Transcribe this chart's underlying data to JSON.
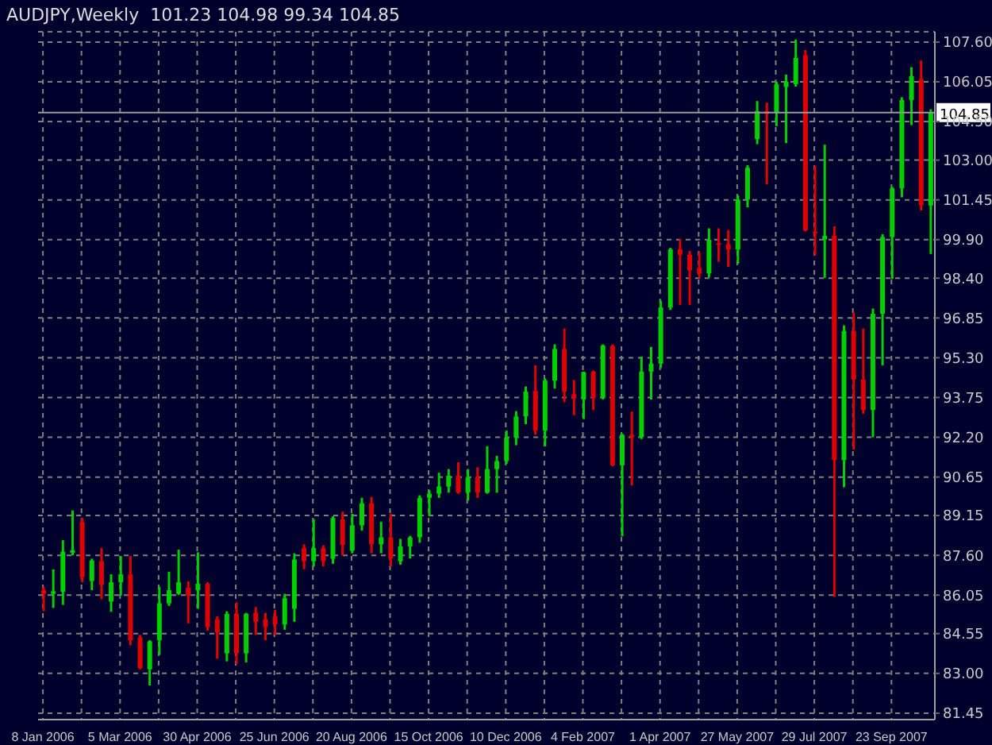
{
  "chart_data": {
    "type": "candlestick",
    "title": "AUDJPY,Weekly  101.23 104.98 99.34 104.85",
    "categories": [
      "8 Jan 2006",
      null,
      null,
      null,
      null,
      null,
      null,
      null,
      "5 Mar 2006",
      null,
      null,
      null,
      null,
      null,
      null,
      null,
      "30 Apr 2006",
      null,
      null,
      null,
      null,
      null,
      null,
      null,
      "25 Jun 2006",
      null,
      null,
      null,
      null,
      null,
      null,
      null,
      "20 Aug 2006",
      null,
      null,
      null,
      null,
      null,
      null,
      null,
      "15 Oct 2006",
      null,
      null,
      null,
      null,
      null,
      null,
      null,
      "10 Dec 2006",
      null,
      null,
      null,
      null,
      null,
      null,
      null,
      "4 Feb 2007",
      null,
      null,
      null,
      null,
      null,
      null,
      null,
      "1 Apr 2007",
      null,
      null,
      null,
      null,
      null,
      null,
      null,
      "27 May 2007",
      null,
      null,
      null,
      null,
      null,
      null,
      null,
      "29 Jul 2007",
      null,
      null,
      null,
      null,
      null,
      null,
      null,
      "23 Sep 2007",
      null,
      null,
      null,
      null
    ],
    "ohlc": [
      [
        86.24,
        86.38,
        85.42,
        86.1
      ],
      [
        86.1,
        87.05,
        85.55,
        86.2
      ],
      [
        86.18,
        88.19,
        85.67,
        87.74
      ],
      [
        87.7,
        89.35,
        87.6,
        87.8
      ],
      [
        88.9,
        89.05,
        86.55,
        86.75
      ],
      [
        86.6,
        87.47,
        86.24,
        87.4
      ],
      [
        87.37,
        87.88,
        85.89,
        86.45
      ],
      [
        85.8,
        86.86,
        85.4,
        86.55
      ],
      [
        86.55,
        87.57,
        86.03,
        86.86
      ],
      [
        86.86,
        87.57,
        84.09,
        84.29
      ],
      [
        84.4,
        84.5,
        83.16,
        83.2
      ],
      [
        83.16,
        84.29,
        82.53,
        84.25
      ],
      [
        84.29,
        86.38,
        83.72,
        85.73
      ],
      [
        85.73,
        86.96,
        85.63,
        86.24
      ],
      [
        86.1,
        87.82,
        86.05,
        86.55
      ],
      [
        86.34,
        86.59,
        84.95,
        86.03
      ],
      [
        86.24,
        87.72,
        85.52,
        86.49
      ],
      [
        86.49,
        86.55,
        84.66,
        84.8
      ],
      [
        85.11,
        85.22,
        83.57,
        84.6
      ],
      [
        83.78,
        85.42,
        83.47,
        85.32
      ],
      [
        85.32,
        85.77,
        83.37,
        83.78
      ],
      [
        83.78,
        85.36,
        83.43,
        85.32
      ],
      [
        85.36,
        85.58,
        84.5,
        85.01
      ],
      [
        85.11,
        85.36,
        84.29,
        84.8
      ],
      [
        85.22,
        85.48,
        84.5,
        84.91
      ],
      [
        84.91,
        86.1,
        84.7,
        85.93
      ],
      [
        85.52,
        87.68,
        85.01,
        87.43
      ],
      [
        87.88,
        88.03,
        87.06,
        87.37
      ],
      [
        87.37,
        89.01,
        87.16,
        87.88
      ],
      [
        87.88,
        87.99,
        87.17,
        87.37
      ],
      [
        87.47,
        89.12,
        87.27,
        89.05
      ],
      [
        89.0,
        89.3,
        87.6,
        88.0
      ],
      [
        87.78,
        89.22,
        87.68,
        88.77
      ],
      [
        88.77,
        89.84,
        88.56,
        89.63
      ],
      [
        89.63,
        89.88,
        87.68,
        88.03
      ],
      [
        88.03,
        88.91,
        87.68,
        88.3
      ],
      [
        88.3,
        89.22,
        87.17,
        87.48
      ],
      [
        87.37,
        88.24,
        87.23,
        87.95
      ],
      [
        87.95,
        88.36,
        87.48,
        88.3
      ],
      [
        88.3,
        89.94,
        88.09,
        89.84
      ],
      [
        89.84,
        90.14,
        89.12,
        90.0
      ],
      [
        90.0,
        90.82,
        89.84,
        90.28
      ],
      [
        90.28,
        90.96,
        90.04,
        90.7
      ],
      [
        90.7,
        91.23,
        90.0,
        90.04
      ],
      [
        90.04,
        90.96,
        89.73,
        90.65
      ],
      [
        90.65,
        91.03,
        89.84,
        90.04
      ],
      [
        90.04,
        91.85,
        90.0,
        90.96
      ],
      [
        90.96,
        91.48,
        90.04,
        91.27
      ],
      [
        91.27,
        92.46,
        91.17,
        92.19
      ],
      [
        92.19,
        93.22,
        91.89,
        93.01
      ],
      [
        93.01,
        94.18,
        92.71,
        93.98
      ],
      [
        94.0,
        95.0,
        92.3,
        92.46
      ],
      [
        92.46,
        94.49,
        91.85,
        94.41
      ],
      [
        94.41,
        95.82,
        94.1,
        95.64
      ],
      [
        95.64,
        96.44,
        93.57,
        93.98
      ],
      [
        93.88,
        94.43,
        93.06,
        93.73
      ],
      [
        93.67,
        94.76,
        92.91,
        94.74
      ],
      [
        94.76,
        94.8,
        93.26,
        93.73
      ],
      [
        93.73,
        95.82,
        93.67,
        95.78
      ],
      [
        95.76,
        95.82,
        91.07,
        91.11
      ],
      [
        91.11,
        92.34,
        88.34,
        92.3
      ],
      [
        92.3,
        93.2,
        90.33,
        92.2
      ],
      [
        92.2,
        95.34,
        92.13,
        94.76
      ],
      [
        94.76,
        95.72,
        93.67,
        95.07
      ],
      [
        95.07,
        97.53,
        94.9,
        97.26
      ],
      [
        97.26,
        99.58,
        97.16,
        99.52
      ],
      [
        99.52,
        99.93,
        97.36,
        99.31
      ],
      [
        99.31,
        99.46,
        97.36,
        98.7
      ],
      [
        98.8,
        99.41,
        98.39,
        98.59
      ],
      [
        98.59,
        100.34,
        98.43,
        99.89
      ],
      [
        99.76,
        100.34,
        99.04,
        99.72
      ],
      [
        99.72,
        100.27,
        98.84,
        99.52
      ],
      [
        99.52,
        101.63,
        98.96,
        101.46
      ],
      [
        101.46,
        102.8,
        101.16,
        102.7
      ],
      [
        103.82,
        105.3,
        103.62,
        104.91
      ],
      [
        104.9,
        105.24,
        102.06,
        104.8
      ],
      [
        104.83,
        106.06,
        104.32,
        105.96
      ],
      [
        105.85,
        106.33,
        103.66,
        106.05
      ],
      [
        105.96,
        107.7,
        105.86,
        106.98
      ],
      [
        107.09,
        107.29,
        100.22,
        100.26
      ],
      [
        100.22,
        102.78,
        99.29,
        100.18
      ],
      [
        99.91,
        103.6,
        98.41,
        100.05
      ],
      [
        100.05,
        100.42,
        85.98,
        91.31
      ],
      [
        91.31,
        96.56,
        90.25,
        96.34
      ],
      [
        96.34,
        97.06,
        91.72,
        94.45
      ],
      [
        94.45,
        96.44,
        93.12,
        93.26
      ],
      [
        93.26,
        97.22,
        92.2,
        97.01
      ],
      [
        97.01,
        100.11,
        95.0,
        100.0
      ],
      [
        100.0,
        101.96,
        98.37,
        101.9
      ],
      [
        101.9,
        105.45,
        101.55,
        105.34
      ],
      [
        105.34,
        106.62,
        104.36,
        106.27
      ],
      [
        106.16,
        106.88,
        101.04,
        101.24
      ],
      [
        101.23,
        104.98,
        99.34,
        104.85
      ]
    ],
    "colors": [
      "#e00000",
      "#00d000",
      "#00d000",
      "#00d000",
      "#e00000",
      "#00d000",
      "#e00000",
      "#00d000",
      "#00d000",
      "#e00000",
      "#e00000",
      "#00d000",
      "#00d000",
      "#00d000",
      "#00d000",
      "#e00000",
      "#00d000",
      "#e00000",
      "#e00000",
      "#00d000",
      "#e00000",
      "#00d000",
      "#e00000",
      "#e00000",
      "#e00000",
      "#00d000",
      "#00d000",
      "#e00000",
      "#00d000",
      "#e00000",
      "#00d000",
      "#e00000",
      "#00d000",
      "#00d000",
      "#e00000",
      "#00d000",
      "#e00000",
      "#00d000",
      "#00d000",
      "#00d000",
      "#00d000",
      "#00d000",
      "#00d000",
      "#e00000",
      "#00d000",
      "#e00000",
      "#00d000",
      "#00d000",
      "#00d000",
      "#00d000",
      "#00d000",
      "#e00000",
      "#00d000",
      "#00d000",
      "#e00000",
      "#e00000",
      "#00d000",
      "#e00000",
      "#00d000",
      "#e00000",
      "#00d000",
      "#e00000",
      "#00d000",
      "#00d000",
      "#00d000",
      "#00d000",
      "#e00000",
      "#e00000",
      "#e00000",
      "#00d000",
      "#e00000",
      "#e00000",
      "#00d000",
      "#00d000",
      "#00d000",
      "#e00000",
      "#00d000",
      "#00d000",
      "#00d000",
      "#e00000",
      "#e00000",
      "#00d000",
      "#e00000",
      "#00d000",
      "#e00000",
      "#e00000",
      "#00d000",
      "#00d000",
      "#00d000",
      "#00d000",
      "#00d000",
      "#e00000",
      "#00d000"
    ],
    "ylim": [
      81.2,
      108.0
    ],
    "yticks": [
      {
        "value": 107.6,
        "label": "107.60"
      },
      {
        "value": 106.05,
        "label": "106.05"
      },
      {
        "value": 104.5,
        "label": "104.50"
      },
      {
        "value": 103,
        "label": "103.00"
      },
      {
        "value": 101.45,
        "label": "101.45"
      },
      {
        "value": 99.9,
        "label": "99.90"
      },
      {
        "value": 98.4,
        "label": "98.40"
      },
      {
        "value": 96.85,
        "label": "96.85"
      },
      {
        "value": 95.3,
        "label": "95.30"
      },
      {
        "value": 93.75,
        "label": "93.75"
      },
      {
        "value": 92.2,
        "label": "92.20"
      },
      {
        "value": 90.65,
        "label": "90.65"
      },
      {
        "value": 89.15,
        "label": "89.15"
      },
      {
        "value": 87.6,
        "label": "87.60"
      },
      {
        "value": 86.05,
        "label": "86.05"
      },
      {
        "value": 84.55,
        "label": "84.55"
      },
      {
        "value": 83,
        "label": "83.00"
      },
      {
        "value": 81.45,
        "label": "81.45"
      }
    ],
    "grid": true,
    "ref_lines": [
      {
        "axis": "y",
        "value": 104.85,
        "label": "104.85",
        "color": "#9a9a9a"
      }
    ]
  }
}
